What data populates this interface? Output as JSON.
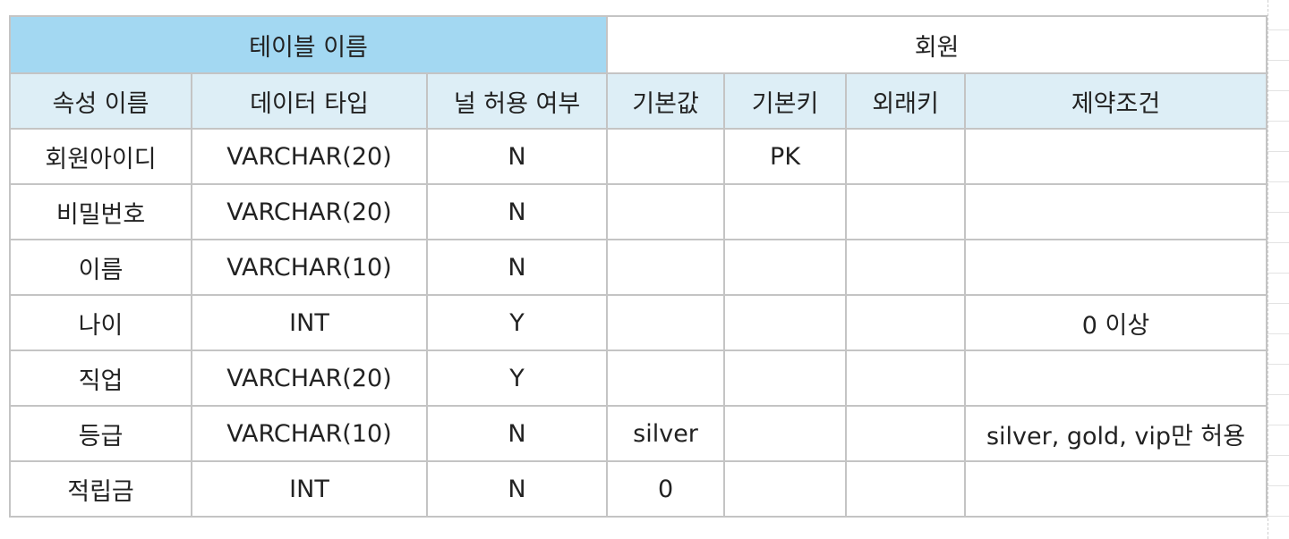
{
  "table": {
    "name_label": "테이블 이름",
    "name_value": "회원",
    "headers": [
      "속성 이름",
      "데이터 타입",
      "널 허용 여부",
      "기본값",
      "기본키",
      "외래키",
      "제약조건"
    ],
    "rows": [
      [
        "회원아이디",
        "VARCHAR(20)",
        "N",
        "",
        "PK",
        "",
        ""
      ],
      [
        "비밀번호",
        "VARCHAR(20)",
        "N",
        "",
        "",
        "",
        ""
      ],
      [
        "이름",
        "VARCHAR(10)",
        "N",
        "",
        "",
        "",
        ""
      ],
      [
        "나이",
        "INT",
        "Y",
        "",
        "",
        "",
        "0 이상"
      ],
      [
        "직업",
        "VARCHAR(20)",
        "Y",
        "",
        "",
        "",
        ""
      ],
      [
        "등급",
        "VARCHAR(10)",
        "N",
        "silver",
        "",
        "",
        "silver, gold, vip만 허용"
      ],
      [
        "적립금",
        "INT",
        "N",
        "0",
        "",
        "",
        ""
      ]
    ]
  },
  "colors": {
    "title_cell": "#a3d8f2",
    "header_row": "#ddeef6",
    "border": "#c4c4c4"
  }
}
